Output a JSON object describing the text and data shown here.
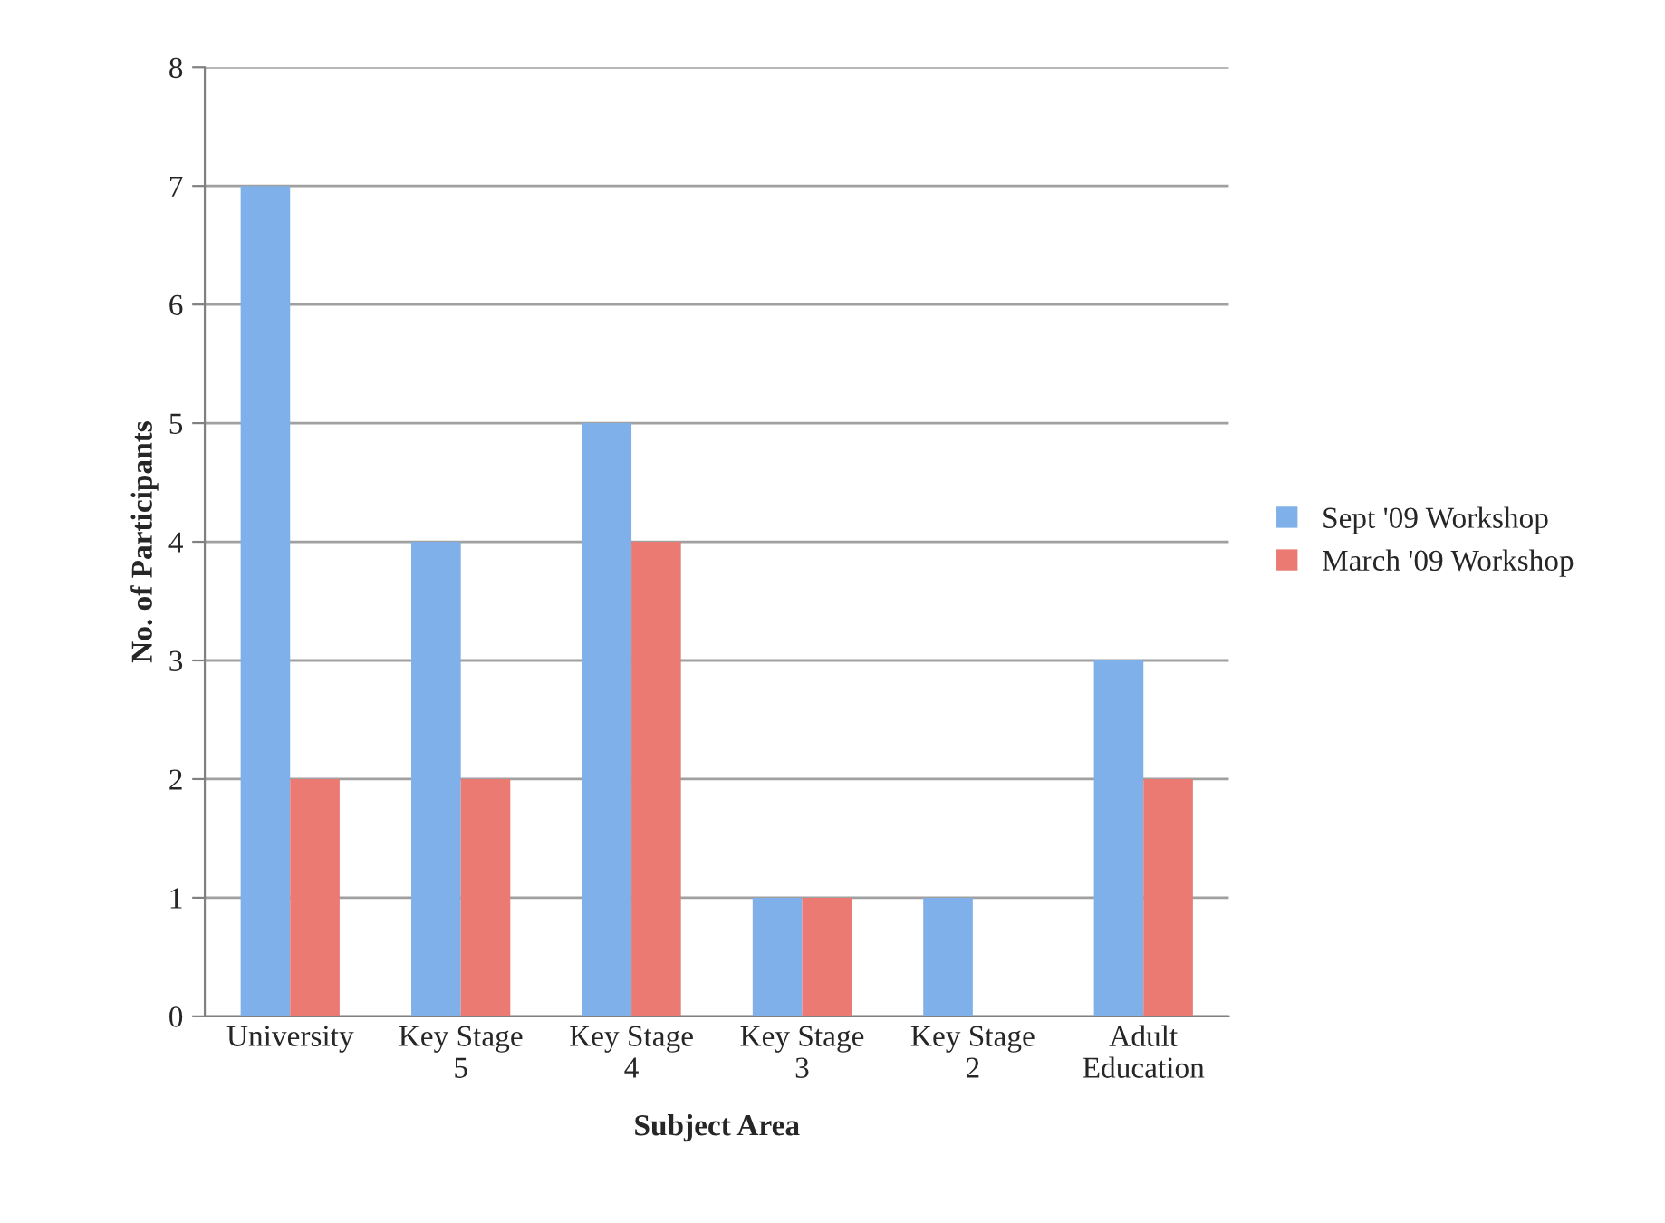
{
  "chart_data": {
    "type": "bar",
    "xlabel": "Subject Area",
    "ylabel": "No. of Participants",
    "categories": [
      "University",
      "Key Stage 5",
      "Key Stage 4",
      "Key Stage 3",
      "Key Stage 2",
      "Adult Education"
    ],
    "series": [
      {
        "name": "Sept '09 Workshop",
        "color": "#7fb0ea",
        "values": [
          7,
          4,
          5,
          1,
          1,
          3
        ]
      },
      {
        "name": "March '09 Workshop",
        "color": "#ea7a72",
        "values": [
          2,
          2,
          4,
          1,
          0,
          2
        ]
      }
    ],
    "ylim": [
      0,
      8
    ],
    "yticks": [
      0,
      1,
      2,
      3,
      4,
      5,
      6,
      7,
      8
    ],
    "grid": "y",
    "legend": "right"
  }
}
